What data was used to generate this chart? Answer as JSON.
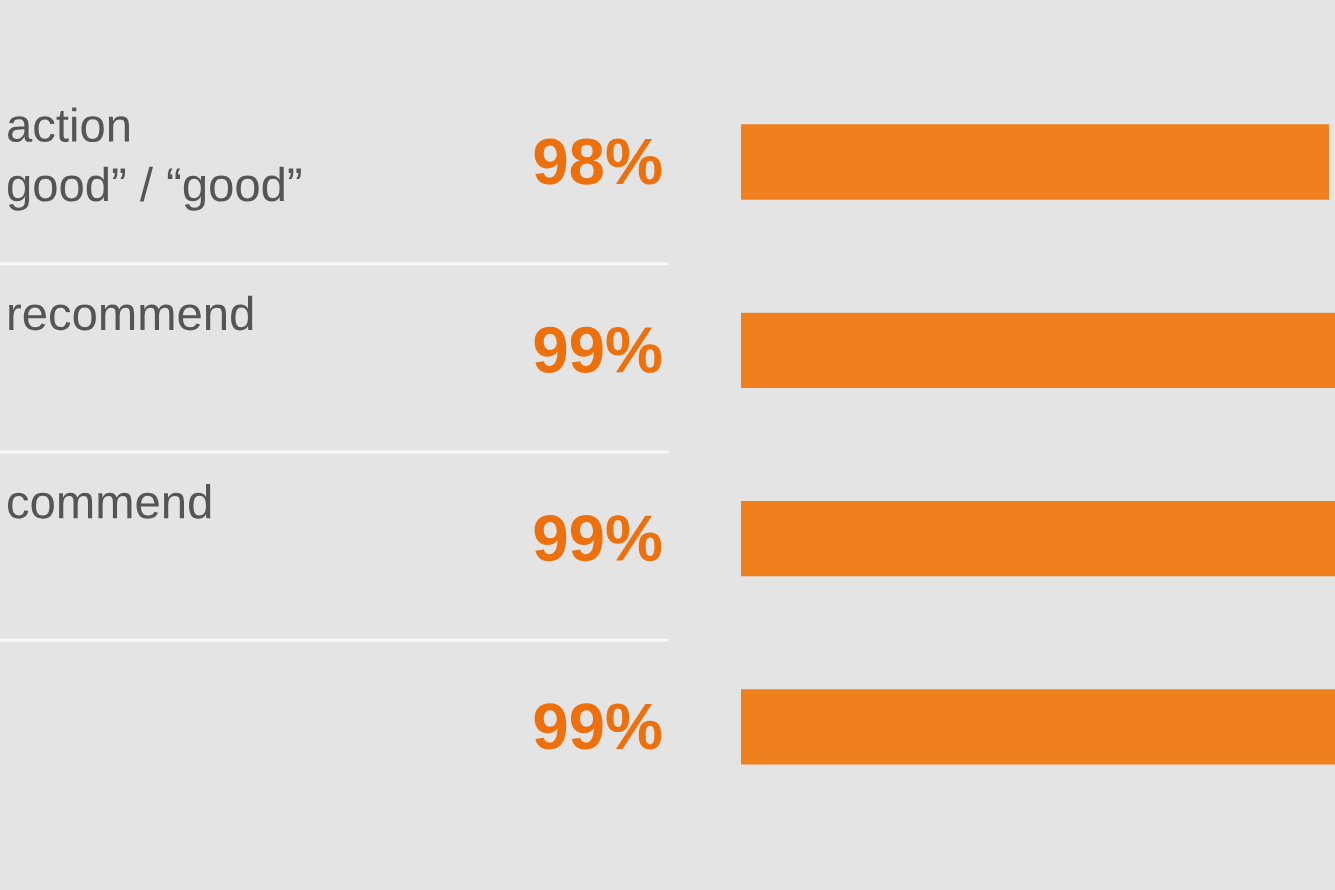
{
  "chart_data": {
    "type": "bar",
    "orientation": "horizontal",
    "categories": [
      "action\ngood” / “good”",
      "recommend",
      "commend",
      null
    ],
    "values": [
      98,
      99,
      99,
      99
    ],
    "value_labels": [
      "98%",
      "99%",
      "99%",
      "99%"
    ],
    "color": "#f07f1e"
  }
}
